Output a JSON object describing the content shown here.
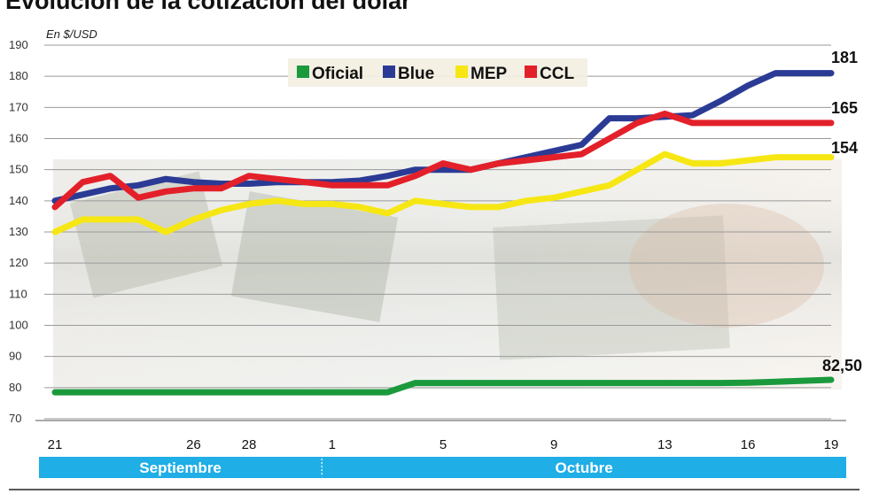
{
  "title": "Evolución de la cotización del dólar",
  "chart_data": {
    "type": "line",
    "unit_label": "En $/USD",
    "ylim": [
      70,
      190
    ],
    "y_ticks": [
      70,
      80,
      90,
      100,
      110,
      120,
      130,
      140,
      150,
      160,
      170,
      180,
      190
    ],
    "x_tick_labels": [
      "21",
      "26",
      "28",
      "1",
      "5",
      "9",
      "13",
      "16",
      "19"
    ],
    "months": [
      "Septiembre",
      "Octubre"
    ],
    "grid": true,
    "legend_position": "top-center",
    "x": [
      "Sep 21",
      "Sep 22",
      "Sep 23",
      "Sep 24",
      "Sep 25",
      "Sep 26",
      "Sep 27",
      "Sep 28",
      "Sep 29",
      "Sep 30",
      "Oct 1",
      "Oct 2",
      "Oct 3",
      "Oct 4",
      "Oct 5",
      "Oct 6",
      "Oct 7",
      "Oct 8",
      "Oct 9",
      "Oct 10",
      "Oct 11",
      "Oct 12",
      "Oct 13",
      "Oct 14",
      "Oct 15",
      "Oct 16",
      "Oct 17",
      "Oct 18",
      "Oct 19"
    ],
    "series": [
      {
        "name": "Oficial",
        "color": "#1a9a3c",
        "values": [
          78.5,
          78.5,
          78.5,
          78.5,
          78.5,
          78.5,
          78.5,
          78.5,
          78.5,
          78.5,
          78.5,
          78.5,
          78.5,
          81.5,
          81.5,
          81.5,
          81.5,
          81.5,
          81.5,
          81.5,
          81.5,
          81.5,
          81.5,
          81.5,
          81.5,
          81.6,
          81.9,
          82.2,
          82.5
        ],
        "end_label": "82,50"
      },
      {
        "name": "Blue",
        "color": "#2b3b95",
        "values": [
          140,
          142,
          144,
          145,
          147,
          146,
          145.5,
          145.5,
          146,
          146,
          146,
          146.5,
          148,
          150,
          150,
          150,
          152,
          154,
          156,
          158,
          166.5,
          166.5,
          167,
          167.5,
          172,
          177,
          181,
          181,
          181
        ],
        "end_label": "181"
      },
      {
        "name": "MEP",
        "color": "#f6e714",
        "values": [
          130,
          134,
          134,
          134,
          130,
          134,
          137,
          139,
          140,
          139,
          139,
          138,
          136,
          140,
          139,
          138,
          138,
          140,
          141,
          143,
          145,
          150,
          155,
          152,
          152,
          153,
          154,
          154,
          154
        ],
        "end_label": "154"
      },
      {
        "name": "CCL",
        "color": "#e3202a",
        "values": [
          138,
          146,
          148,
          141,
          143,
          144,
          144,
          148,
          147,
          146,
          145,
          145,
          145,
          148,
          152,
          150,
          152,
          153,
          154,
          155,
          160,
          165,
          168,
          165,
          165,
          165,
          165,
          165,
          165
        ],
        "end_label": "165"
      }
    ]
  }
}
